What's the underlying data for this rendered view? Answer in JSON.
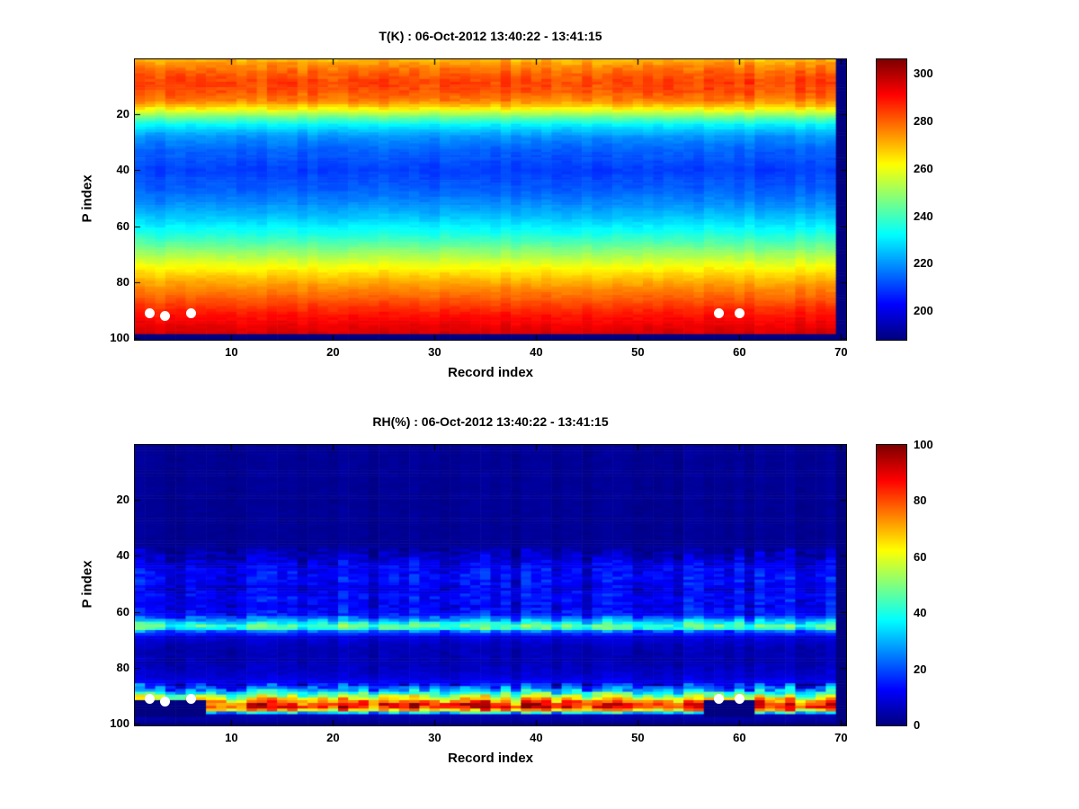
{
  "figure": {
    "background": "#ffffff",
    "text_color": "#000000"
  },
  "chart_data": [
    {
      "id": "temperature",
      "type": "heatmap",
      "title": "T(K) : 06-Oct-2012 13:40:22 - 13:41:15",
      "xlabel": "Record index",
      "ylabel": "P index",
      "x_ticks": [
        10,
        20,
        30,
        40,
        50,
        60,
        70
      ],
      "y_ticks": [
        20,
        40,
        60,
        80,
        100
      ],
      "x_range": [
        0.5,
        70.5
      ],
      "y_range": [
        0.5,
        100.5
      ],
      "y_direction": "reversed",
      "n_records": 70,
      "n_levels": 100,
      "colormap": "jet",
      "seed": 3,
      "colorbar": {
        "min": 188,
        "max": 306,
        "ticks": [
          200,
          220,
          240,
          260,
          280,
          300
        ]
      },
      "profile_points": [
        [
          1,
          271
        ],
        [
          3,
          276
        ],
        [
          6,
          281
        ],
        [
          9,
          284
        ],
        [
          12,
          282
        ],
        [
          15,
          277
        ],
        [
          17,
          269
        ],
        [
          19,
          258
        ],
        [
          21,
          246
        ],
        [
          24,
          231
        ],
        [
          28,
          220
        ],
        [
          33,
          214
        ],
        [
          40,
          210
        ],
        [
          46,
          213
        ],
        [
          52,
          219
        ],
        [
          57,
          226
        ],
        [
          62,
          234
        ],
        [
          66,
          242
        ],
        [
          70,
          251
        ],
        [
          74,
          260
        ],
        [
          78,
          268
        ],
        [
          82,
          275
        ],
        [
          86,
          281
        ],
        [
          90,
          287
        ],
        [
          93,
          291
        ],
        [
          96,
          294
        ],
        [
          100,
          297
        ]
      ],
      "noise": {
        "bands": [
          {
            "p": [
              1,
              18
            ],
            "amp": 4.5
          },
          {
            "p": [
              19,
              100
            ],
            "amp": 2.5
          }
        ]
      },
      "missing": {
        "right_columns": 1,
        "bottom_rows": 2,
        "patches": []
      },
      "markers": {
        "shape": "circle",
        "color": "#ffffff",
        "points": [
          {
            "x": 2,
            "y": 91
          },
          {
            "x": 3.5,
            "y": 92
          },
          {
            "x": 6,
            "y": 91
          },
          {
            "x": 58,
            "y": 91
          },
          {
            "x": 60,
            "y": 91
          }
        ]
      }
    },
    {
      "id": "relative-humidity",
      "type": "heatmap",
      "title": "RH(%) : 06-Oct-2012 13:40:22 - 13:41:15",
      "xlabel": "Record index",
      "ylabel": "P index",
      "x_ticks": [
        10,
        20,
        30,
        40,
        50,
        60,
        70
      ],
      "y_ticks": [
        20,
        40,
        60,
        80,
        100
      ],
      "x_range": [
        0.5,
        70.5
      ],
      "y_range": [
        0.5,
        100.5
      ],
      "y_direction": "reversed",
      "n_records": 70,
      "n_levels": 100,
      "colormap": "jet",
      "seed": 11,
      "colorbar": {
        "min": 0,
        "max": 100,
        "ticks": [
          0,
          20,
          40,
          60,
          80,
          100
        ]
      },
      "profile_points": [
        [
          1,
          2
        ],
        [
          36,
          2
        ],
        [
          40,
          6
        ],
        [
          44,
          11
        ],
        [
          48,
          13
        ],
        [
          52,
          10
        ],
        [
          55,
          13
        ],
        [
          58,
          11
        ],
        [
          61,
          14
        ],
        [
          63,
          28
        ],
        [
          65,
          46
        ],
        [
          66,
          40
        ],
        [
          67,
          22
        ],
        [
          69,
          9
        ],
        [
          73,
          5
        ],
        [
          78,
          5
        ],
        [
          83,
          8
        ],
        [
          86,
          13
        ],
        [
          88,
          28
        ],
        [
          90,
          52
        ],
        [
          92,
          75
        ],
        [
          93,
          84
        ],
        [
          94,
          84
        ],
        [
          95,
          68
        ],
        [
          96,
          35
        ],
        [
          97,
          5
        ],
        [
          100,
          2
        ]
      ],
      "noise": {
        "bands": [
          {
            "p": [
              1,
              37
            ],
            "amp": 1.5
          },
          {
            "p": [
              38,
              61
            ],
            "amp": 8
          },
          {
            "p": [
              62,
              67
            ],
            "amp": 11
          },
          {
            "p": [
              68,
              85
            ],
            "amp": 3
          },
          {
            "p": [
              86,
              96
            ],
            "amp": 18
          },
          {
            "p": [
              97,
              100
            ],
            "amp": 1
          }
        ]
      },
      "missing": {
        "right_columns": 1,
        "bottom_rows": 1,
        "patches": [
          {
            "x": [
              1,
              7
            ],
            "y": [
              92,
              97
            ]
          },
          {
            "x": [
              57,
              61
            ],
            "y": [
              92,
              97
            ]
          }
        ]
      },
      "markers": {
        "shape": "circle",
        "color": "#ffffff",
        "points": [
          {
            "x": 2,
            "y": 91
          },
          {
            "x": 3.5,
            "y": 92
          },
          {
            "x": 6,
            "y": 91
          },
          {
            "x": 58,
            "y": 91
          },
          {
            "x": 60,
            "y": 91
          }
        ]
      }
    }
  ]
}
